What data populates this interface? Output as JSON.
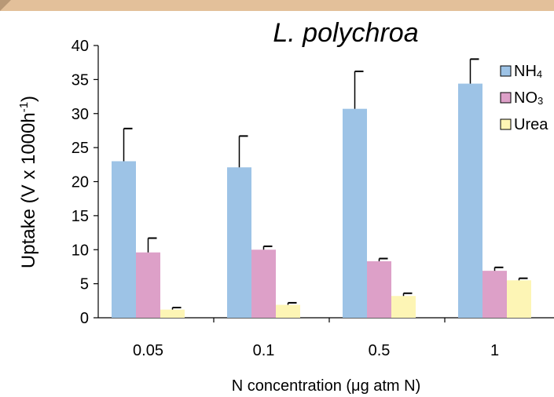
{
  "chart_data": {
    "type": "bar",
    "title": "L. polychroa",
    "ylabel": "Uptake (V x 1000h",
    "ylabel_sup": "-1",
    "ylabel_close": ")",
    "xlabel": "N concentration (μg atm N)",
    "categories": [
      "0.05",
      "0.1",
      "0.5",
      "1"
    ],
    "ylim": [
      0,
      40
    ],
    "yticks": [
      0,
      5,
      10,
      15,
      20,
      25,
      30,
      35,
      40
    ],
    "legend_position": "top-right",
    "series": [
      {
        "name": "NH",
        "name_sub": "4",
        "color": "#9dc3e6",
        "values": [
          23.0,
          22.1,
          30.7,
          34.4
        ],
        "errors": [
          4.8,
          4.6,
          5.5,
          3.6
        ]
      },
      {
        "name": "NO",
        "name_sub": "3",
        "color": "#dda0c8",
        "values": [
          9.6,
          10.0,
          8.3,
          6.9
        ],
        "errors": [
          2.1,
          0.5,
          0.4,
          0.5
        ]
      },
      {
        "name": "Urea",
        "name_sub": "",
        "color": "#fdf5b5",
        "values": [
          1.2,
          1.9,
          3.2,
          5.5
        ],
        "errors": [
          0.3,
          0.3,
          0.4,
          0.3
        ]
      }
    ]
  }
}
